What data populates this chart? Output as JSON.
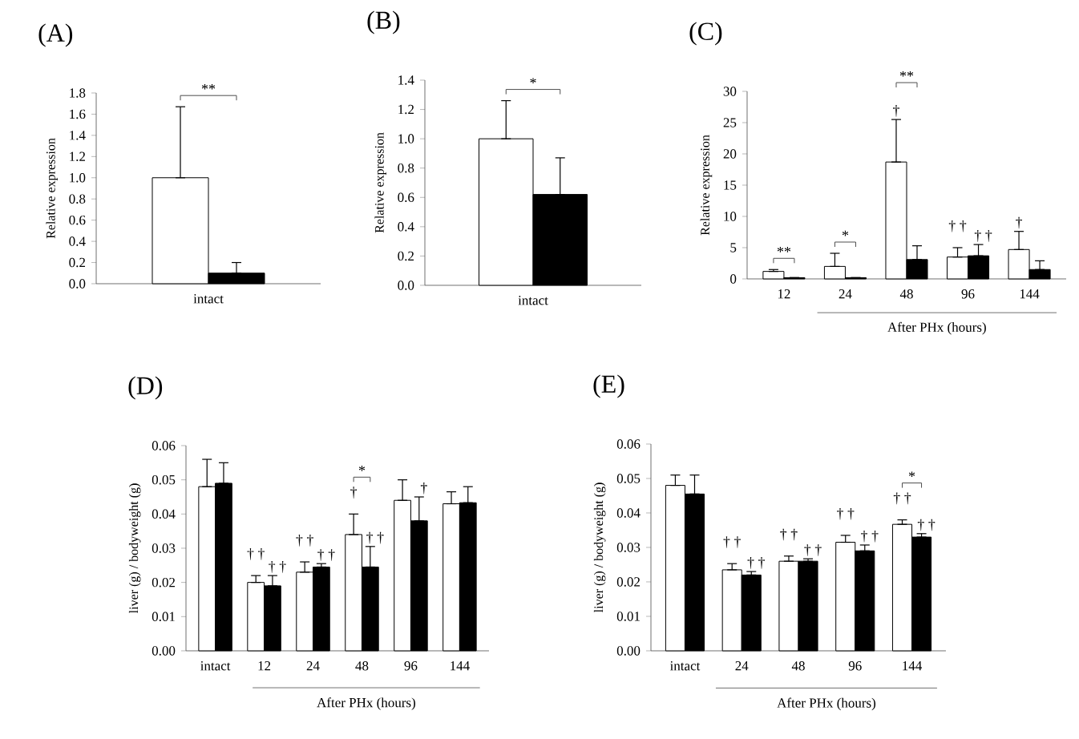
{
  "chart_data": [
    {
      "type": "bar",
      "title": "(A)",
      "ylabel": "Relative expression",
      "categories": [
        "intact"
      ],
      "series": [
        {
          "color": "#ffffff",
          "values": [
            1.0
          ],
          "errors": [
            [
              1.0,
              1.67
            ]
          ]
        },
        {
          "color": "#000000",
          "values": [
            0.1
          ],
          "errors": [
            [
              0.1,
              0.2
            ]
          ]
        }
      ],
      "ylim": [
        0,
        1.8
      ],
      "yticks": [
        {
          "value": 0,
          "label": "0.0"
        },
        {
          "value": 0.2,
          "label": "0.2"
        },
        {
          "value": 0.4,
          "label": "0.4"
        },
        {
          "value": 0.6,
          "label": "0.6"
        },
        {
          "value": 0.8,
          "label": "0.8"
        },
        {
          "value": 1.0,
          "label": "1.0"
        },
        {
          "value": 1.2,
          "label": "1.2"
        },
        {
          "value": 1.4,
          "label": "1.4"
        },
        {
          "value": 1.6,
          "label": "1.6"
        },
        {
          "value": 1.8,
          "label": "1.8"
        }
      ],
      "annotations": [
        "**"
      ]
    },
    {
      "type": "bar",
      "title": "(B)",
      "ylabel": "Relative expression",
      "categories": [
        "intact"
      ],
      "series": [
        {
          "color": "#ffffff",
          "values": [
            1.0
          ],
          "errors": [
            [
              1.0,
              1.26
            ]
          ]
        },
        {
          "color": "#000000",
          "values": [
            0.62
          ],
          "errors": [
            [
              0.62,
              0.87
            ]
          ]
        }
      ],
      "ylim": [
        0,
        1.4
      ],
      "yticks": [
        {
          "value": 0,
          "label": "0.0"
        },
        {
          "value": 0.2,
          "label": "0.2"
        },
        {
          "value": 0.4,
          "label": "0.4"
        },
        {
          "value": 0.6,
          "label": "0.6"
        },
        {
          "value": 0.8,
          "label": "0.8"
        },
        {
          "value": 1.0,
          "label": "1.0"
        },
        {
          "value": 1.2,
          "label": "1.2"
        },
        {
          "value": 1.4,
          "label": "1.4"
        }
      ],
      "annotations": [
        "*"
      ]
    },
    {
      "type": "bar",
      "title": "(C)",
      "ylabel": "Relative expression",
      "xlabel": "After PHx (hours)",
      "categories": [
        "12",
        "24",
        "48",
        "96",
        "144"
      ],
      "series": [
        {
          "color": "#ffffff",
          "values": [
            1.2,
            2.0,
            18.7,
            3.5,
            4.7
          ],
          "errors": [
            [
              1.2,
              1.5
            ],
            [
              2.0,
              4.1
            ],
            [
              18.7,
              25.5
            ],
            [
              3.5,
              5.0
            ],
            [
              4.7,
              7.6
            ]
          ]
        },
        {
          "color": "#000000",
          "values": [
            0.2,
            0.2,
            3.1,
            3.7,
            1.5
          ],
          "errors": [
            null,
            null,
            [
              3.1,
              5.3
            ],
            [
              3.7,
              5.5
            ],
            [
              1.5,
              2.9
            ]
          ]
        }
      ],
      "ylim": [
        0,
        30
      ],
      "yticks": [
        0,
        5,
        10,
        15,
        20,
        25,
        30
      ],
      "annotations": [
        "**",
        "*",
        "†",
        "**",
        {
          "text": "† †",
          "x": "96",
          "y": 3.5
        },
        {
          "text": "† †",
          "x": "96",
          "y": 3.7
        },
        {
          "text": "†",
          "x": "144",
          "y": 4.7
        }
      ]
    },
    {
      "type": "bar",
      "title": "(D)",
      "ylabel": "liver (g) / bodyweight (g)",
      "xlabel": "After PHx (hours)",
      "categories": [
        "intact",
        "12",
        "24",
        "48",
        "96",
        "144"
      ],
      "series": [
        {
          "color": "#ffffff",
          "values": [
            0.048,
            0.02,
            0.023,
            0.034,
            0.044,
            0.043
          ],
          "errors": [
            [
              0.048,
              0.056
            ],
            [
              0.02,
              0.022
            ],
            [
              0.023,
              0.026
            ],
            [
              0.034,
              0.04
            ],
            [
              0.044,
              0.05
            ],
            [
              0.043,
              0.0465
            ]
          ]
        },
        {
          "color": "#000000",
          "values": [
            0.049,
            0.019,
            0.0245,
            0.0245,
            0.038,
            0.0433
          ],
          "errors": [
            [
              0.049,
              0.055
            ],
            [
              0.019,
              0.022
            ],
            [
              0.0245,
              0.0255
            ],
            [
              0.0245,
              0.0305
            ],
            [
              0.038,
              0.045
            ],
            [
              0.0433,
              0.048
            ]
          ]
        }
      ],
      "ylim": [
        0,
        0.06
      ],
      "yticks": [
        {
          "value": 0,
          "label": "0.00"
        },
        {
          "value": 0.01,
          "label": "0.01"
        },
        {
          "value": 0.02,
          "label": "0.02"
        },
        {
          "value": 0.03,
          "label": "0.03"
        },
        {
          "value": 0.04,
          "label": "0.04"
        },
        {
          "value": 0.05,
          "label": "0.05"
        },
        {
          "value": 0.06,
          "label": "0.06"
        }
      ],
      "annotations": [
        {
          "text": "† †",
          "x": "12",
          "y": 0.02
        },
        {
          "text": "† †",
          "x": "12",
          "y": 0.019
        },
        {
          "text": "† †",
          "x": "24",
          "y": 0.023
        },
        {
          "text": "† †",
          "x": "24",
          "y": 0.0245
        },
        {
          "text": "†",
          "x": "48",
          "y": 0.034
        },
        "*",
        {
          "text": "† †",
          "x": "48",
          "y": 0.0245
        },
        {
          "text": "†",
          "x": "96",
          "y": 0.038
        }
      ]
    },
    {
      "type": "bar",
      "title": "(E)",
      "ylabel": "liver (g) / bodyweight (g)",
      "xlabel": "After PHx (hours)",
      "categories": [
        "intact",
        "24",
        "48",
        "96",
        "144"
      ],
      "series": [
        {
          "color": "#ffffff",
          "values": [
            0.048,
            0.0235,
            0.026,
            0.0315,
            0.0367
          ],
          "errors": [
            [
              0.048,
              0.051
            ],
            [
              0.0235,
              0.0253
            ],
            [
              0.026,
              0.0275
            ],
            [
              0.0315,
              0.0335
            ],
            [
              0.0367,
              0.038
            ]
          ]
        },
        {
          "color": "#000000",
          "values": [
            0.0455,
            0.022,
            0.026,
            0.029,
            0.033
          ],
          "errors": [
            [
              0.0455,
              0.051
            ],
            [
              0.022,
              0.023
            ],
            [
              0.026,
              0.0267
            ],
            [
              0.029,
              0.0307
            ],
            [
              0.033,
              0.034
            ]
          ]
        }
      ],
      "ylim": [
        0,
        0.06
      ],
      "yticks": [
        {
          "value": 0,
          "label": "0.00"
        },
        {
          "value": 0.01,
          "label": "0.01"
        },
        {
          "value": 0.02,
          "label": "0.02"
        },
        {
          "value": 0.03,
          "label": "0.03"
        },
        {
          "value": 0.04,
          "label": "0.04"
        },
        {
          "value": 0.05,
          "label": "0.05"
        },
        {
          "value": 0.06,
          "label": "0.06"
        }
      ],
      "annotations": [
        {
          "text": "† †",
          "x": "24",
          "y": 0.0235
        },
        {
          "text": "† †",
          "x": "24",
          "y": 0.022
        },
        {
          "text": "† †",
          "x": "48",
          "y": 0.026
        },
        {
          "text": "† †",
          "x": "48",
          "y": 0.026
        },
        {
          "text": "† †",
          "x": "96",
          "y": 0.0315
        },
        {
          "text": "† †",
          "x": "96",
          "y": 0.029
        },
        {
          "text": "† †",
          "x": "144",
          "y": 0.0367
        },
        "*",
        {
          "text": "† †",
          "x": "144",
          "y": 0.033
        }
      ]
    }
  ]
}
